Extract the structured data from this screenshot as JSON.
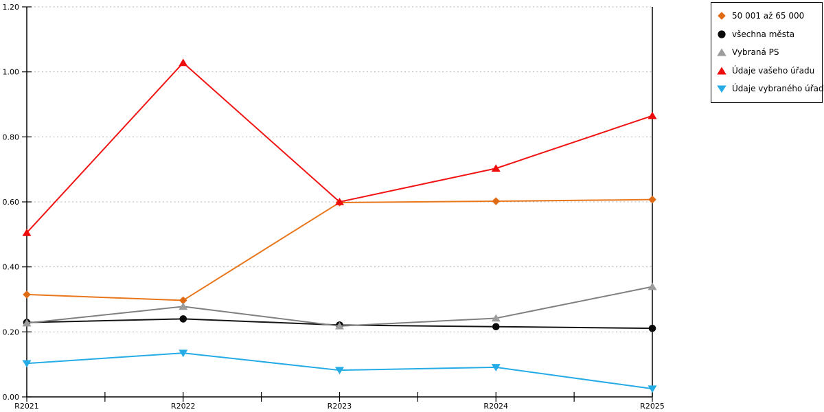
{
  "chart_data": {
    "type": "line",
    "x_categories": [
      "R2021",
      "R2022",
      "R2023",
      "R2024",
      "R2025"
    ],
    "y_ticks": [
      "0.00",
      "0.20",
      "0.40",
      "0.60",
      "0.80",
      "1.00",
      "1.20"
    ],
    "ylim": [
      0,
      1.2
    ],
    "grid": "horizontal-dotted",
    "legend_position": "top-right",
    "series": [
      {
        "name": "50 001 až 65 000",
        "marker": "diamond",
        "color": "#E8761B",
        "marker_color": "#E06B15",
        "values": [
          0.315,
          0.297,
          0.598,
          0.602,
          0.607
        ]
      },
      {
        "name": "všechna města",
        "marker": "circle",
        "color": "#141414",
        "marker_color": "#0A0A0A",
        "values": [
          0.229,
          0.24,
          0.221,
          0.216,
          0.211
        ]
      },
      {
        "name": "Vybraná PS",
        "marker": "triangle-up",
        "color": "#808080",
        "marker_color": "#9C9C9C",
        "values": [
          0.227,
          0.278,
          0.218,
          0.242,
          0.339
        ]
      },
      {
        "name": "Údaje vašeho úřadu",
        "marker": "triangle-up",
        "color": "#F01414",
        "marker_color": "#EE0C0C",
        "values": [
          0.505,
          1.028,
          0.6,
          0.703,
          0.865
        ]
      },
      {
        "name": "Údaje vybraného úřadu",
        "marker": "triangle-down",
        "color": "#25ABE5",
        "marker_color": "#25ABE5",
        "values": [
          0.103,
          0.135,
          0.082,
          0.091,
          0.025
        ]
      }
    ]
  },
  "colors": {
    "grid": "#B3B3B3",
    "axis": "#000000",
    "background": "#FFFFFF",
    "legend_border": "#000000"
  }
}
